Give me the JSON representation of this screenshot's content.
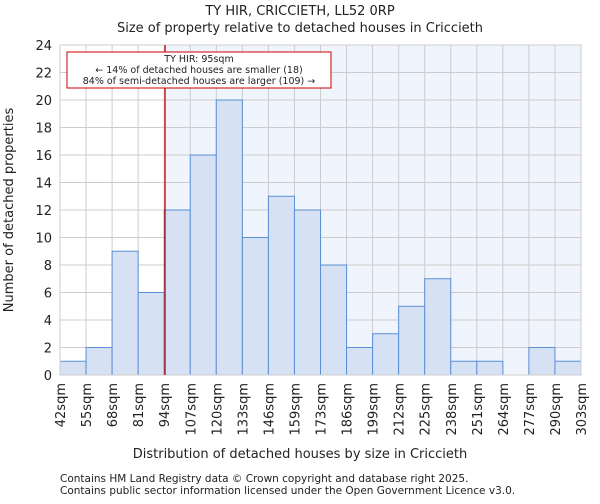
{
  "chart_data": {
    "type": "bar",
    "title": "TY HIR, CRICCIETH, LL52 0RP",
    "subtitle": "Size of property relative to detached houses in Criccieth",
    "xlabel": "Distribution of detached houses by size in Criccieth",
    "ylabel": "Number of detached properties",
    "bin_edges": [
      42,
      55,
      68,
      81,
      94,
      107,
      120,
      133,
      146,
      159,
      173,
      186,
      199,
      212,
      225,
      238,
      251,
      264,
      277,
      290,
      303
    ],
    "tick_labels": [
      "42sqm",
      "55sqm",
      "68sqm",
      "81sqm",
      "94sqm",
      "107sqm",
      "120sqm",
      "133sqm",
      "146sqm",
      "159sqm",
      "173sqm",
      "186sqm",
      "199sqm",
      "212sqm",
      "225sqm",
      "238sqm",
      "251sqm",
      "264sqm",
      "277sqm",
      "290sqm",
      "303sqm"
    ],
    "values": [
      1,
      2,
      9,
      6,
      12,
      16,
      20,
      10,
      13,
      12,
      8,
      2,
      3,
      5,
      7,
      1,
      1,
      0,
      2,
      1
    ],
    "ylim": [
      0,
      24
    ],
    "yticks": [
      0,
      2,
      4,
      6,
      8,
      10,
      12,
      14,
      16,
      18,
      20,
      22,
      24
    ],
    "grid": true,
    "marker": {
      "value_sqm": 95,
      "color": "#cc0000"
    },
    "annotation": {
      "line1": "TY HIR: 95sqm",
      "line2": "← 14% of detached houses are smaller (18)",
      "line3": "84% of semi-detached houses are larger (109) →"
    },
    "colors": {
      "bar_fill": "#d6e1f3",
      "bar_edge": "#5b8fd6",
      "highlight_bg": "#f0f4fc",
      "grid": "#cccccc"
    }
  },
  "footer": {
    "line1": "Contains HM Land Registry data © Crown copyright and database right 2025.",
    "line2": "Contains public sector information licensed under the Open Government Licence v3.0."
  }
}
